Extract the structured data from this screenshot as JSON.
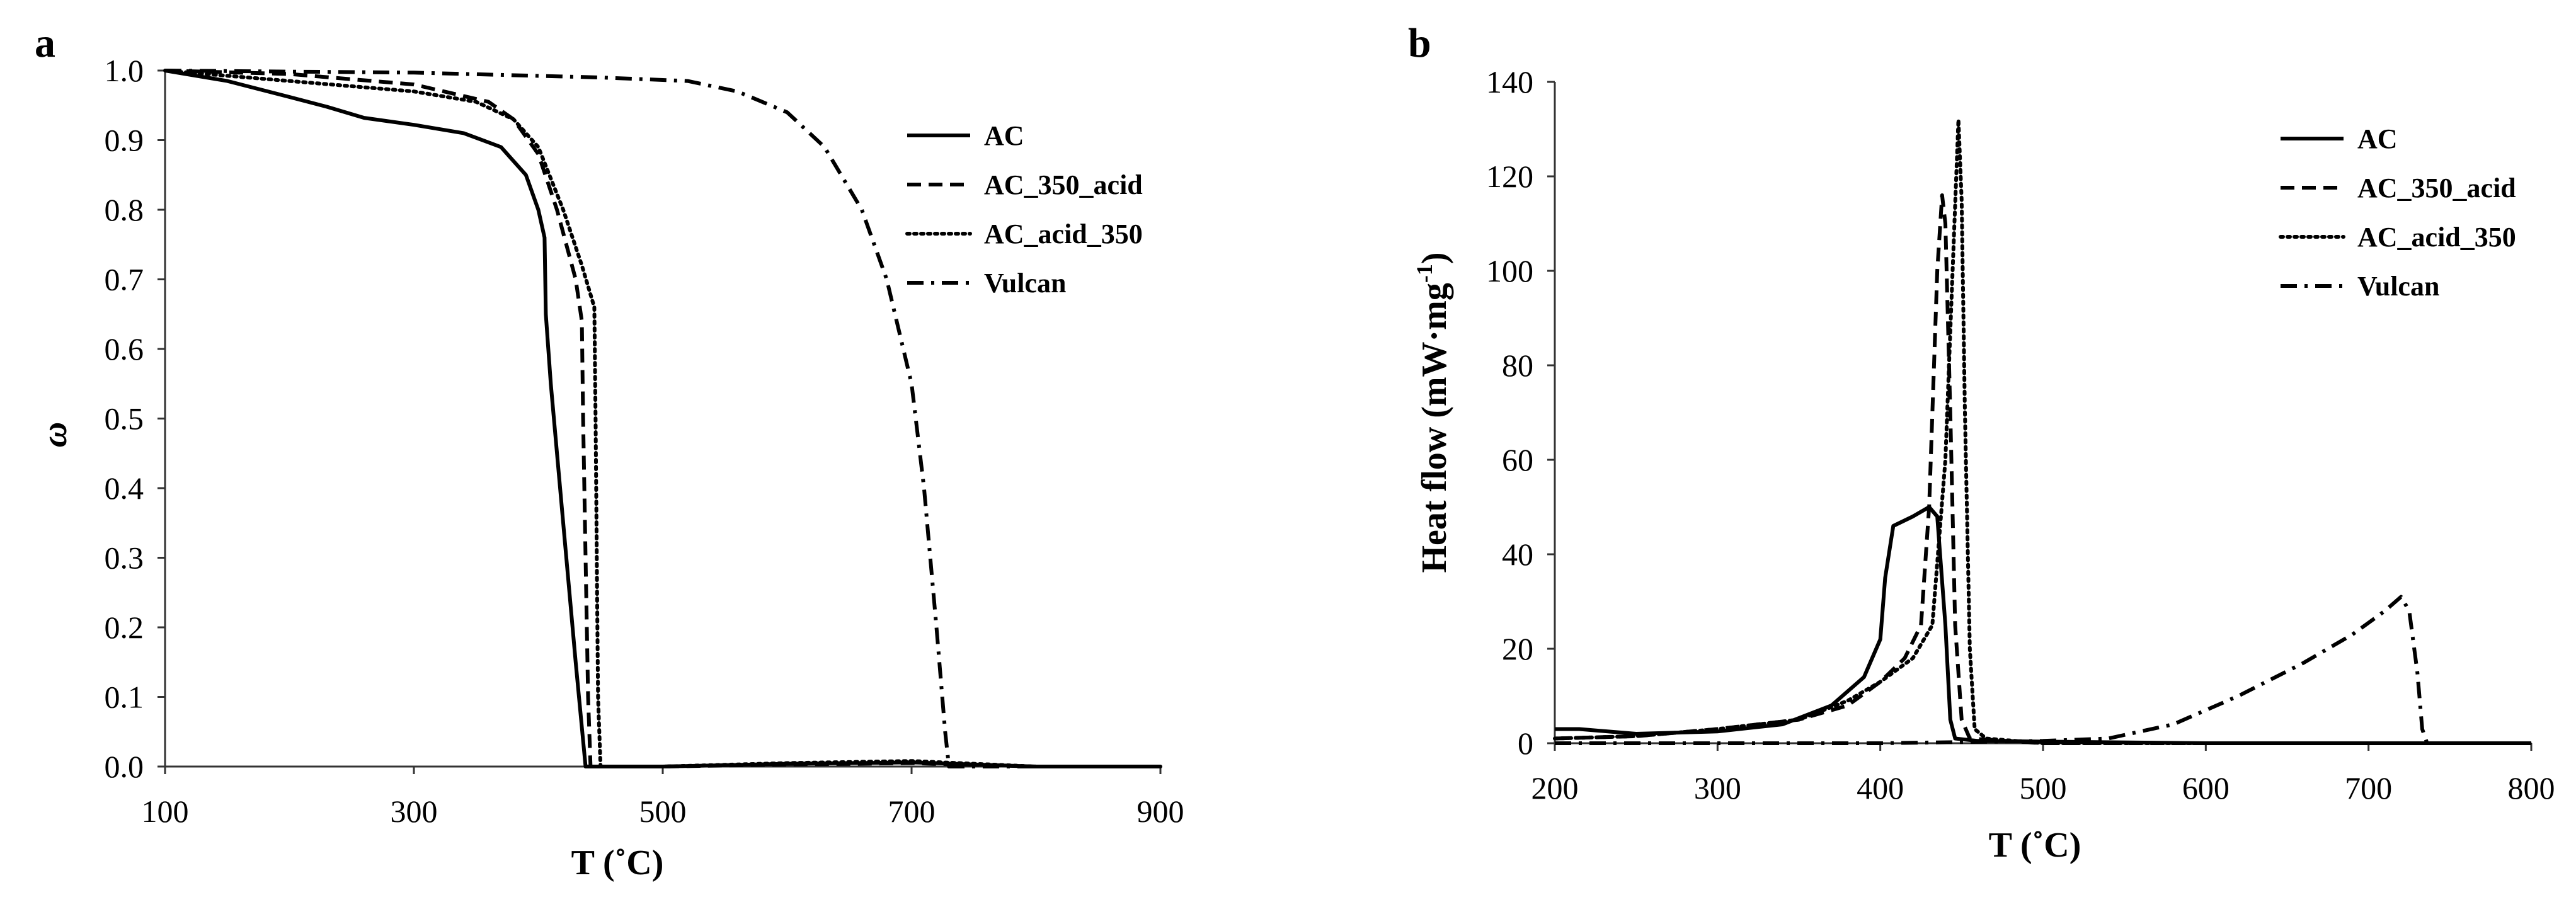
{
  "figure": {
    "panels": [
      "a",
      "b"
    ]
  },
  "colors": {
    "line": "#000000",
    "axis": "#333333"
  },
  "chart_data": [
    {
      "panel_label": "a",
      "type": "line",
      "xlabel": "T (˚C)",
      "ylabel": "ω",
      "xlim": [
        100,
        900
      ],
      "ylim": [
        0,
        1.0
      ],
      "xticks": [
        100,
        300,
        500,
        700,
        900
      ],
      "yticks": [
        0.0,
        0.1,
        0.2,
        0.3,
        0.4,
        0.5,
        0.6,
        0.7,
        0.8,
        0.9,
        1.0
      ],
      "xtick_labels": [
        "100",
        "300",
        "500",
        "700",
        "900"
      ],
      "ytick_labels": [
        "0.0",
        "0.1",
        "0.2",
        "0.3",
        "0.4",
        "0.5",
        "0.6",
        "0.7",
        "0.8",
        "0.9",
        "1.0"
      ],
      "grid": false,
      "legend_position": "top-right",
      "series": [
        {
          "name": "AC",
          "dash": "solid",
          "points": [
            [
              100,
              1.0
            ],
            [
              150,
              0.985
            ],
            [
              200,
              0.962
            ],
            [
              230,
              0.948
            ],
            [
              260,
              0.932
            ],
            [
              300,
              0.922
            ],
            [
              340,
              0.91
            ],
            [
              370,
              0.89
            ],
            [
              390,
              0.85
            ],
            [
              400,
              0.8
            ],
            [
              405,
              0.76
            ],
            [
              406,
              0.65
            ],
            [
              410,
              0.55
            ],
            [
              420,
              0.35
            ],
            [
              430,
              0.15
            ],
            [
              438,
              0.0
            ],
            [
              500,
              0.0
            ],
            [
              600,
              0.004
            ],
            [
              700,
              0.006
            ],
            [
              800,
              0.0
            ],
            [
              900,
              0.0
            ]
          ]
        },
        {
          "name": "AC_350_acid",
          "dash": "dash",
          "points": [
            [
              100,
              1.0
            ],
            [
              200,
              0.995
            ],
            [
              300,
              0.98
            ],
            [
              360,
              0.955
            ],
            [
              380,
              0.93
            ],
            [
              400,
              0.88
            ],
            [
              415,
              0.8
            ],
            [
              430,
              0.7
            ],
            [
              435,
              0.64
            ],
            [
              436,
              0.5
            ],
            [
              438,
              0.3
            ],
            [
              440,
              0.1
            ],
            [
              442,
              0.0
            ],
            [
              500,
              0.0
            ],
            [
              600,
              0.003
            ],
            [
              700,
              0.005
            ],
            [
              800,
              0.0
            ],
            [
              900,
              0.0
            ]
          ]
        },
        {
          "name": "AC_acid_350",
          "dash": "dot",
          "points": [
            [
              100,
              1.0
            ],
            [
              200,
              0.985
            ],
            [
              300,
              0.97
            ],
            [
              350,
              0.955
            ],
            [
              380,
              0.93
            ],
            [
              400,
              0.89
            ],
            [
              420,
              0.8
            ],
            [
              435,
              0.72
            ],
            [
              445,
              0.66
            ],
            [
              446,
              0.5
            ],
            [
              447,
              0.3
            ],
            [
              448,
              0.1
            ],
            [
              450,
              0.0
            ],
            [
              500,
              0.0
            ],
            [
              600,
              0.005
            ],
            [
              700,
              0.008
            ],
            [
              800,
              0.0
            ],
            [
              900,
              0.0
            ]
          ]
        },
        {
          "name": "Vulcan",
          "dash": "dashdot",
          "points": [
            [
              100,
              1.0
            ],
            [
              300,
              0.997
            ],
            [
              450,
              0.99
            ],
            [
              520,
              0.985
            ],
            [
              560,
              0.97
            ],
            [
              600,
              0.94
            ],
            [
              630,
              0.89
            ],
            [
              660,
              0.8
            ],
            [
              680,
              0.7
            ],
            [
              700,
              0.55
            ],
            [
              710,
              0.4
            ],
            [
              720,
              0.2
            ],
            [
              727,
              0.05
            ],
            [
              730,
              0.0
            ],
            [
              900,
              0.0
            ]
          ]
        }
      ]
    },
    {
      "panel_label": "b",
      "type": "line",
      "xlabel": "T (˚C)",
      "ylabel": "Heat flow (mW·mg",
      "ylabel_sup": "-1",
      "ylabel_end": ")",
      "xlim": [
        200,
        800
      ],
      "ylim": [
        0,
        140
      ],
      "xticks": [
        200,
        300,
        400,
        500,
        600,
        700,
        800
      ],
      "yticks": [
        0,
        20,
        40,
        60,
        80,
        100,
        120,
        140
      ],
      "xtick_labels": [
        "200",
        "300",
        "400",
        "500",
        "600",
        "700",
        "800"
      ],
      "ytick_labels": [
        "0",
        "20",
        "40",
        "60",
        "80",
        "100",
        "120",
        "140"
      ],
      "grid": false,
      "legend_position": "top-right",
      "series": [
        {
          "name": "AC",
          "dash": "solid",
          "points": [
            [
              200,
              3
            ],
            [
              215,
              3
            ],
            [
              250,
              2
            ],
            [
              300,
              2.5
            ],
            [
              340,
              4
            ],
            [
              370,
              8
            ],
            [
              390,
              14
            ],
            [
              400,
              22
            ],
            [
              403,
              35
            ],
            [
              408,
              46
            ],
            [
              420,
              48
            ],
            [
              430,
              50
            ],
            [
              435,
              48
            ],
            [
              440,
              25
            ],
            [
              443,
              5
            ],
            [
              446,
              1
            ],
            [
              460,
              0.5
            ],
            [
              600,
              0
            ],
            [
              800,
              0
            ]
          ]
        },
        {
          "name": "AC_350_acid",
          "dash": "dash",
          "points": [
            [
              200,
              1
            ],
            [
              250,
              1.5
            ],
            [
              300,
              3
            ],
            [
              350,
              5
            ],
            [
              380,
              8
            ],
            [
              400,
              13
            ],
            [
              415,
              18
            ],
            [
              425,
              25
            ],
            [
              430,
              50
            ],
            [
              435,
              100
            ],
            [
              438,
              116
            ],
            [
              440,
              110
            ],
            [
              443,
              70
            ],
            [
              446,
              25
            ],
            [
              450,
              5
            ],
            [
              455,
              1
            ],
            [
              500,
              0
            ],
            [
              800,
              0
            ]
          ]
        },
        {
          "name": "AC_acid_350",
          "dash": "dot",
          "points": [
            [
              200,
              1
            ],
            [
              250,
              1.5
            ],
            [
              300,
              3
            ],
            [
              350,
              5
            ],
            [
              380,
              9
            ],
            [
              400,
              13
            ],
            [
              420,
              18
            ],
            [
              432,
              25
            ],
            [
              440,
              60
            ],
            [
              445,
              105
            ],
            [
              448,
              132
            ],
            [
              450,
              115
            ],
            [
              452,
              70
            ],
            [
              455,
              20
            ],
            [
              458,
              3
            ],
            [
              465,
              1
            ],
            [
              500,
              0
            ],
            [
              800,
              0
            ]
          ]
        },
        {
          "name": "Vulcan",
          "dash": "dashdot",
          "points": [
            [
              200,
              0
            ],
            [
              400,
              0
            ],
            [
              500,
              0.5
            ],
            [
              540,
              1
            ],
            [
              580,
              4
            ],
            [
              620,
              10
            ],
            [
              660,
              17
            ],
            [
              690,
              23
            ],
            [
              710,
              28
            ],
            [
              720,
              31
            ],
            [
              725,
              28
            ],
            [
              730,
              15
            ],
            [
              733,
              3
            ],
            [
              736,
              0
            ],
            [
              800,
              0
            ]
          ]
        }
      ]
    }
  ]
}
